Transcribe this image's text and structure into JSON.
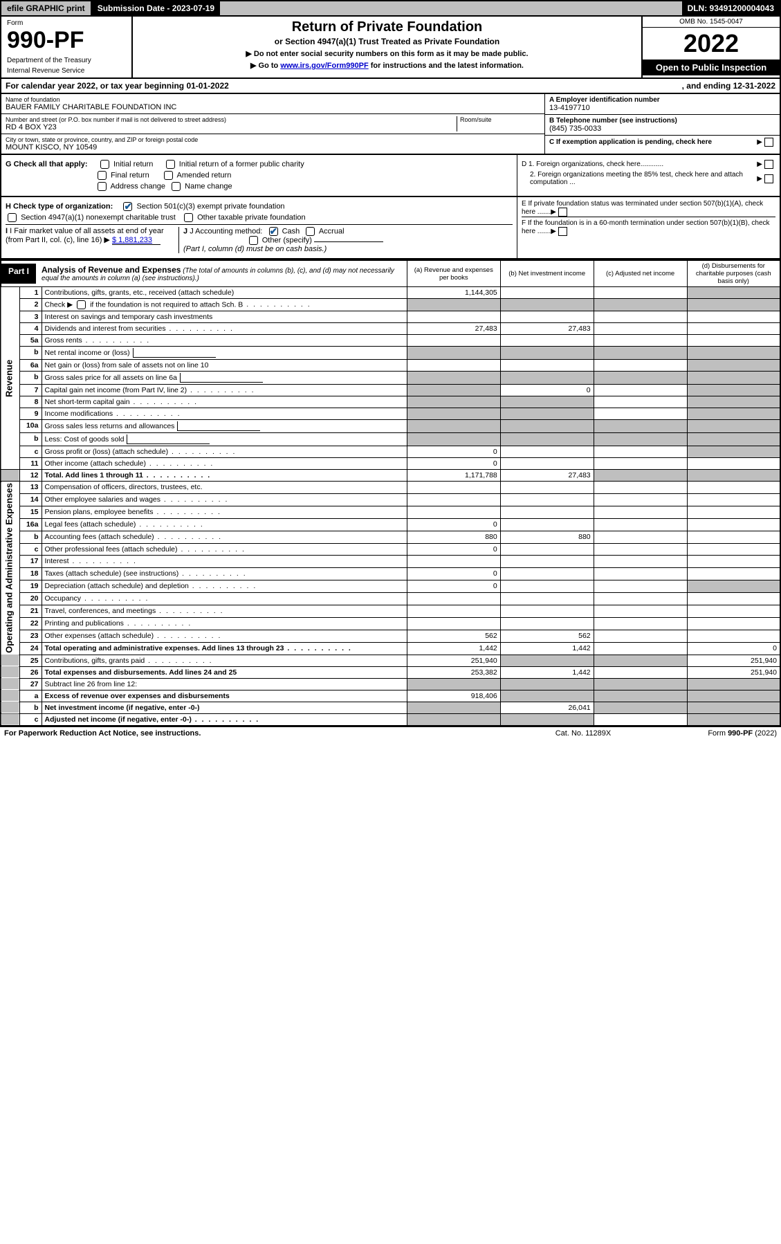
{
  "topbar": {
    "efile": "efile GRAPHIC print",
    "submission_label": "Submission Date - 2023-07-19",
    "dln": "DLN: 93491200004043"
  },
  "header": {
    "form": "Form",
    "form_no": "990-PF",
    "dept": "Department of the Treasury",
    "irs": "Internal Revenue Service",
    "title": "Return of Private Foundation",
    "subtitle": "or Section 4947(a)(1) Trust Treated as Private Foundation",
    "note1": "▶ Do not enter social security numbers on this form as it may be made public.",
    "note2_pre": "▶ Go to ",
    "note2_link": "www.irs.gov/Form990PF",
    "note2_post": " for instructions and the latest information.",
    "omb": "OMB No. 1545-0047",
    "year": "2022",
    "open": "Open to Public Inspection"
  },
  "calyear": {
    "text_l": "For calendar year 2022, or tax year beginning 01-01-2022",
    "text_r": ", and ending 12-31-2022"
  },
  "info": {
    "name_lbl": "Name of foundation",
    "name_val": "BAUER FAMILY CHARITABLE FOUNDATION INC",
    "addr_lbl": "Number and street (or P.O. box number if mail is not delivered to street address)",
    "addr_val": "RD 4 BOX Y23",
    "room_lbl": "Room/suite",
    "city_lbl": "City or town, state or province, country, and ZIP or foreign postal code",
    "city_val": "MOUNT KISCO, NY  10549",
    "a_lbl": "A Employer identification number",
    "a_val": "13-4197710",
    "b_lbl": "B Telephone number (see instructions)",
    "b_val": "(845) 735-0033",
    "c_lbl": "C If exemption application is pending, check here"
  },
  "checks": {
    "g_lbl": "G Check all that apply:",
    "g_items": [
      "Initial return",
      "Initial return of a former public charity",
      "Final return",
      "Amended return",
      "Address change",
      "Name change"
    ],
    "h_lbl": "H Check type of organization:",
    "h1": "Section 501(c)(3) exempt private foundation",
    "h2": "Section 4947(a)(1) nonexempt charitable trust",
    "h3": "Other taxable private foundation",
    "i_lbl": "I Fair market value of all assets at end of year (from Part II, col. (c), line 16) ",
    "i_val": "$  1,881,233",
    "j_lbl": "J Accounting method:",
    "j_cash": "Cash",
    "j_accrual": "Accrual",
    "j_other": "Other (specify)",
    "j_note": "(Part I, column (d) must be on cash basis.)",
    "d1": "D 1. Foreign organizations, check here............",
    "d2": "2. Foreign organizations meeting the 85% test, check here and attach computation ...",
    "e": "E  If private foundation status was terminated under section 507(b)(1)(A), check here .......",
    "f": "F  If the foundation is in a 60-month termination under section 507(b)(1)(B), check here .......",
    "arrow": "▶"
  },
  "part1": {
    "tab": "Part I",
    "title": "Analysis of Revenue and Expenses",
    "title_note": "(The total of amounts in columns (b), (c), and (d) may not necessarily equal the amounts in column (a) (see instructions).)",
    "col_a": "(a)  Revenue and expenses per books",
    "col_b": "(b)  Net investment income",
    "col_c": "(c)  Adjusted net income",
    "col_d": "(d)  Disbursements for charitable purposes (cash basis only)",
    "side_rev": "Revenue",
    "side_exp": "Operating and Administrative Expenses"
  },
  "rows": {
    "r1": {
      "n": "1",
      "d": "Contributions, gifts, grants, etc., received (attach schedule)",
      "a": "1,144,305"
    },
    "r2": {
      "n": "2",
      "d": "Check ▶",
      "d2": " if the foundation is not required to attach Sch. B"
    },
    "r3": {
      "n": "3",
      "d": "Interest on savings and temporary cash investments"
    },
    "r4": {
      "n": "4",
      "d": "Dividends and interest from securities",
      "a": "27,483",
      "b": "27,483"
    },
    "r5a": {
      "n": "5a",
      "d": "Gross rents"
    },
    "r5b": {
      "n": "b",
      "d": "Net rental income or (loss)"
    },
    "r6a": {
      "n": "6a",
      "d": "Net gain or (loss) from sale of assets not on line 10"
    },
    "r6b": {
      "n": "b",
      "d": "Gross sales price for all assets on line 6a"
    },
    "r7": {
      "n": "7",
      "d": "Capital gain net income (from Part IV, line 2)",
      "b": "0"
    },
    "r8": {
      "n": "8",
      "d": "Net short-term capital gain"
    },
    "r9": {
      "n": "9",
      "d": "Income modifications"
    },
    "r10a": {
      "n": "10a",
      "d": "Gross sales less returns and allowances"
    },
    "r10b": {
      "n": "b",
      "d": "Less: Cost of goods sold"
    },
    "r10c": {
      "n": "c",
      "d": "Gross profit or (loss) (attach schedule)",
      "a": "0"
    },
    "r11": {
      "n": "11",
      "d": "Other income (attach schedule)",
      "a": "0"
    },
    "r12": {
      "n": "12",
      "d": "Total. Add lines 1 through 11",
      "a": "1,171,788",
      "b": "27,483",
      "bold": true
    },
    "r13": {
      "n": "13",
      "d": "Compensation of officers, directors, trustees, etc."
    },
    "r14": {
      "n": "14",
      "d": "Other employee salaries and wages"
    },
    "r15": {
      "n": "15",
      "d": "Pension plans, employee benefits"
    },
    "r16a": {
      "n": "16a",
      "d": "Legal fees (attach schedule)",
      "a": "0"
    },
    "r16b": {
      "n": "b",
      "d": "Accounting fees (attach schedule)",
      "a": "880",
      "b": "880"
    },
    "r16c": {
      "n": "c",
      "d": "Other professional fees (attach schedule)",
      "a": "0"
    },
    "r17": {
      "n": "17",
      "d": "Interest"
    },
    "r18": {
      "n": "18",
      "d": "Taxes (attach schedule) (see instructions)",
      "a": "0"
    },
    "r19": {
      "n": "19",
      "d": "Depreciation (attach schedule) and depletion",
      "a": "0"
    },
    "r20": {
      "n": "20",
      "d": "Occupancy"
    },
    "r21": {
      "n": "21",
      "d": "Travel, conferences, and meetings"
    },
    "r22": {
      "n": "22",
      "d": "Printing and publications"
    },
    "r23": {
      "n": "23",
      "d": "Other expenses (attach schedule)",
      "a": "562",
      "b": "562"
    },
    "r24": {
      "n": "24",
      "d": "Total operating and administrative expenses. Add lines 13 through 23",
      "a": "1,442",
      "b": "1,442",
      "dd": "0",
      "bold": true
    },
    "r25": {
      "n": "25",
      "d": "Contributions, gifts, grants paid",
      "a": "251,940",
      "dd": "251,940"
    },
    "r26": {
      "n": "26",
      "d": "Total expenses and disbursements. Add lines 24 and 25",
      "a": "253,382",
      "b": "1,442",
      "dd": "251,940",
      "bold": true
    },
    "r27": {
      "n": "27",
      "d": "Subtract line 26 from line 12:"
    },
    "r27a": {
      "n": "a",
      "d": "Excess of revenue over expenses and disbursements",
      "a": "918,406",
      "bold": true
    },
    "r27b": {
      "n": "b",
      "d": "Net investment income (if negative, enter -0-)",
      "b": "26,041",
      "bold": true
    },
    "r27c": {
      "n": "c",
      "d": "Adjusted net income (if negative, enter -0-)",
      "bold": true
    }
  },
  "footer": {
    "l": "For Paperwork Reduction Act Notice, see instructions.",
    "c": "Cat. No. 11289X",
    "r": "Form 990-PF (2022)"
  },
  "colors": {
    "grey": "#bfbfbf",
    "black": "#000000",
    "link": "#0000cc",
    "check": "#1a5c99"
  }
}
